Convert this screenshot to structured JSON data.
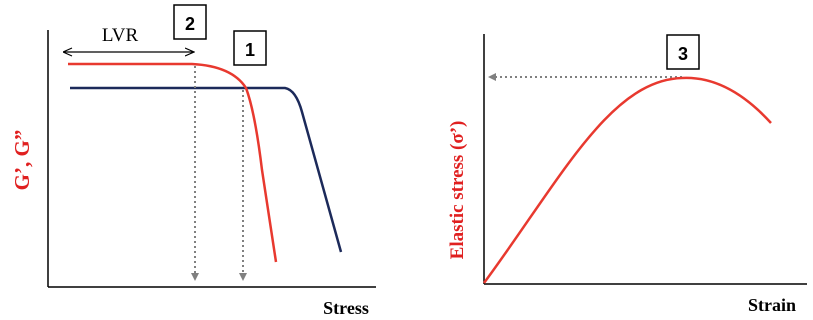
{
  "left_panel": {
    "ylabel": "G’, G”",
    "xlabel": "Stress",
    "region_label": "LVR",
    "markers": {
      "marker_1": "1",
      "marker_2": "2"
    }
  },
  "right_panel": {
    "ylabel": "Elastic stress (σ’)",
    "xlabel": "Strain",
    "markers": {
      "marker_3": "3"
    }
  },
  "colors": {
    "g_prime_curve": "#e8392f",
    "g_double_prime_curve": "#1c2a5a",
    "ylabel_red": "#e02020",
    "axis": "#000000",
    "guide_arrow": "#808080"
  }
}
